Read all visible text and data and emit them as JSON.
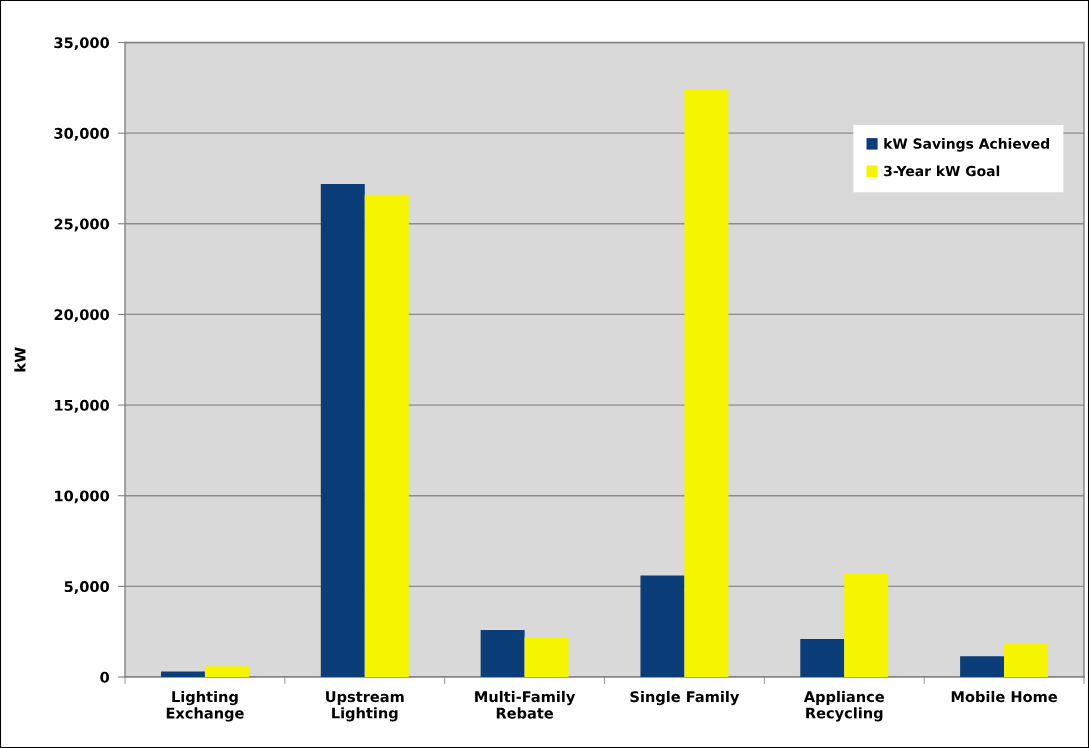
{
  "chart_data": {
    "type": "bar",
    "categories": [
      "Lighting\nExchange",
      "Upstream\nLighting",
      "Multi-Family\nRebate",
      "Single Family",
      "Appliance\nRecycling",
      "Mobile Home"
    ],
    "series": [
      {
        "name": "kW Savings Achieved",
        "color": "#0b3d78",
        "values": [
          300,
          27200,
          2600,
          5600,
          2100,
          1150
        ]
      },
      {
        "name": "3-Year kW Goal",
        "color": "#f5f500",
        "values": [
          600,
          26600,
          2200,
          32400,
          5700,
          1850
        ]
      }
    ],
    "ylabel": "kW",
    "ylim": [
      0,
      35000
    ],
    "yticks": [
      {
        "value": 0,
        "label": "0"
      },
      {
        "value": 5000,
        "label": "5,000"
      },
      {
        "value": 10000,
        "label": "10,000"
      },
      {
        "value": 15000,
        "label": "15,000"
      },
      {
        "value": 20000,
        "label": "20,000"
      },
      {
        "value": 25000,
        "label": "25,000"
      },
      {
        "value": 30000,
        "label": "30,000"
      },
      {
        "value": 35000,
        "label": "35,000"
      }
    ],
    "grid": "y",
    "legend": "top right"
  }
}
